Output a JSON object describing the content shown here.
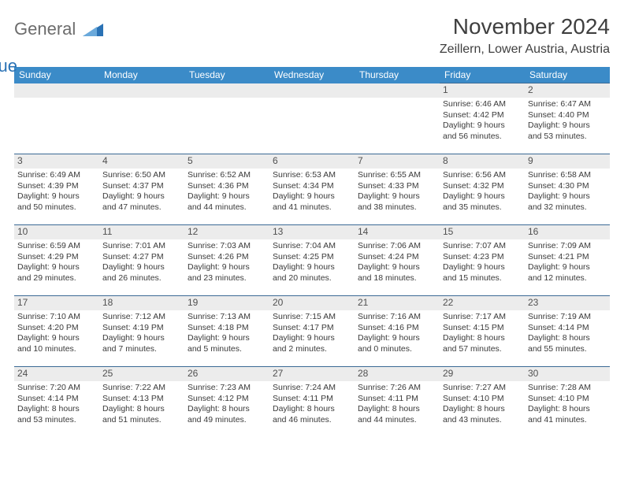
{
  "logo": {
    "part1": "General",
    "part2": "Blue"
  },
  "title": "November 2024",
  "location": "Zeillern, Lower Austria, Austria",
  "colors": {
    "header_bg": "#3b8bc8",
    "header_text": "#ffffff",
    "daynum_bg": "#ececec",
    "border": "#3b6a95",
    "logo_gray": "#6c6c6c",
    "logo_blue": "#2a72b5"
  },
  "weekdays": [
    "Sunday",
    "Monday",
    "Tuesday",
    "Wednesday",
    "Thursday",
    "Friday",
    "Saturday"
  ],
  "weeks": [
    [
      null,
      null,
      null,
      null,
      null,
      {
        "n": "1",
        "sr": "Sunrise: 6:46 AM",
        "ss": "Sunset: 4:42 PM",
        "d1": "Daylight: 9 hours",
        "d2": "and 56 minutes."
      },
      {
        "n": "2",
        "sr": "Sunrise: 6:47 AM",
        "ss": "Sunset: 4:40 PM",
        "d1": "Daylight: 9 hours",
        "d2": "and 53 minutes."
      }
    ],
    [
      {
        "n": "3",
        "sr": "Sunrise: 6:49 AM",
        "ss": "Sunset: 4:39 PM",
        "d1": "Daylight: 9 hours",
        "d2": "and 50 minutes."
      },
      {
        "n": "4",
        "sr": "Sunrise: 6:50 AM",
        "ss": "Sunset: 4:37 PM",
        "d1": "Daylight: 9 hours",
        "d2": "and 47 minutes."
      },
      {
        "n": "5",
        "sr": "Sunrise: 6:52 AM",
        "ss": "Sunset: 4:36 PM",
        "d1": "Daylight: 9 hours",
        "d2": "and 44 minutes."
      },
      {
        "n": "6",
        "sr": "Sunrise: 6:53 AM",
        "ss": "Sunset: 4:34 PM",
        "d1": "Daylight: 9 hours",
        "d2": "and 41 minutes."
      },
      {
        "n": "7",
        "sr": "Sunrise: 6:55 AM",
        "ss": "Sunset: 4:33 PM",
        "d1": "Daylight: 9 hours",
        "d2": "and 38 minutes."
      },
      {
        "n": "8",
        "sr": "Sunrise: 6:56 AM",
        "ss": "Sunset: 4:32 PM",
        "d1": "Daylight: 9 hours",
        "d2": "and 35 minutes."
      },
      {
        "n": "9",
        "sr": "Sunrise: 6:58 AM",
        "ss": "Sunset: 4:30 PM",
        "d1": "Daylight: 9 hours",
        "d2": "and 32 minutes."
      }
    ],
    [
      {
        "n": "10",
        "sr": "Sunrise: 6:59 AM",
        "ss": "Sunset: 4:29 PM",
        "d1": "Daylight: 9 hours",
        "d2": "and 29 minutes."
      },
      {
        "n": "11",
        "sr": "Sunrise: 7:01 AM",
        "ss": "Sunset: 4:27 PM",
        "d1": "Daylight: 9 hours",
        "d2": "and 26 minutes."
      },
      {
        "n": "12",
        "sr": "Sunrise: 7:03 AM",
        "ss": "Sunset: 4:26 PM",
        "d1": "Daylight: 9 hours",
        "d2": "and 23 minutes."
      },
      {
        "n": "13",
        "sr": "Sunrise: 7:04 AM",
        "ss": "Sunset: 4:25 PM",
        "d1": "Daylight: 9 hours",
        "d2": "and 20 minutes."
      },
      {
        "n": "14",
        "sr": "Sunrise: 7:06 AM",
        "ss": "Sunset: 4:24 PM",
        "d1": "Daylight: 9 hours",
        "d2": "and 18 minutes."
      },
      {
        "n": "15",
        "sr": "Sunrise: 7:07 AM",
        "ss": "Sunset: 4:23 PM",
        "d1": "Daylight: 9 hours",
        "d2": "and 15 minutes."
      },
      {
        "n": "16",
        "sr": "Sunrise: 7:09 AM",
        "ss": "Sunset: 4:21 PM",
        "d1": "Daylight: 9 hours",
        "d2": "and 12 minutes."
      }
    ],
    [
      {
        "n": "17",
        "sr": "Sunrise: 7:10 AM",
        "ss": "Sunset: 4:20 PM",
        "d1": "Daylight: 9 hours",
        "d2": "and 10 minutes."
      },
      {
        "n": "18",
        "sr": "Sunrise: 7:12 AM",
        "ss": "Sunset: 4:19 PM",
        "d1": "Daylight: 9 hours",
        "d2": "and 7 minutes."
      },
      {
        "n": "19",
        "sr": "Sunrise: 7:13 AM",
        "ss": "Sunset: 4:18 PM",
        "d1": "Daylight: 9 hours",
        "d2": "and 5 minutes."
      },
      {
        "n": "20",
        "sr": "Sunrise: 7:15 AM",
        "ss": "Sunset: 4:17 PM",
        "d1": "Daylight: 9 hours",
        "d2": "and 2 minutes."
      },
      {
        "n": "21",
        "sr": "Sunrise: 7:16 AM",
        "ss": "Sunset: 4:16 PM",
        "d1": "Daylight: 9 hours",
        "d2": "and 0 minutes."
      },
      {
        "n": "22",
        "sr": "Sunrise: 7:17 AM",
        "ss": "Sunset: 4:15 PM",
        "d1": "Daylight: 8 hours",
        "d2": "and 57 minutes."
      },
      {
        "n": "23",
        "sr": "Sunrise: 7:19 AM",
        "ss": "Sunset: 4:14 PM",
        "d1": "Daylight: 8 hours",
        "d2": "and 55 minutes."
      }
    ],
    [
      {
        "n": "24",
        "sr": "Sunrise: 7:20 AM",
        "ss": "Sunset: 4:14 PM",
        "d1": "Daylight: 8 hours",
        "d2": "and 53 minutes."
      },
      {
        "n": "25",
        "sr": "Sunrise: 7:22 AM",
        "ss": "Sunset: 4:13 PM",
        "d1": "Daylight: 8 hours",
        "d2": "and 51 minutes."
      },
      {
        "n": "26",
        "sr": "Sunrise: 7:23 AM",
        "ss": "Sunset: 4:12 PM",
        "d1": "Daylight: 8 hours",
        "d2": "and 49 minutes."
      },
      {
        "n": "27",
        "sr": "Sunrise: 7:24 AM",
        "ss": "Sunset: 4:11 PM",
        "d1": "Daylight: 8 hours",
        "d2": "and 46 minutes."
      },
      {
        "n": "28",
        "sr": "Sunrise: 7:26 AM",
        "ss": "Sunset: 4:11 PM",
        "d1": "Daylight: 8 hours",
        "d2": "and 44 minutes."
      },
      {
        "n": "29",
        "sr": "Sunrise: 7:27 AM",
        "ss": "Sunset: 4:10 PM",
        "d1": "Daylight: 8 hours",
        "d2": "and 43 minutes."
      },
      {
        "n": "30",
        "sr": "Sunrise: 7:28 AM",
        "ss": "Sunset: 4:10 PM",
        "d1": "Daylight: 8 hours",
        "d2": "and 41 minutes."
      }
    ]
  ]
}
